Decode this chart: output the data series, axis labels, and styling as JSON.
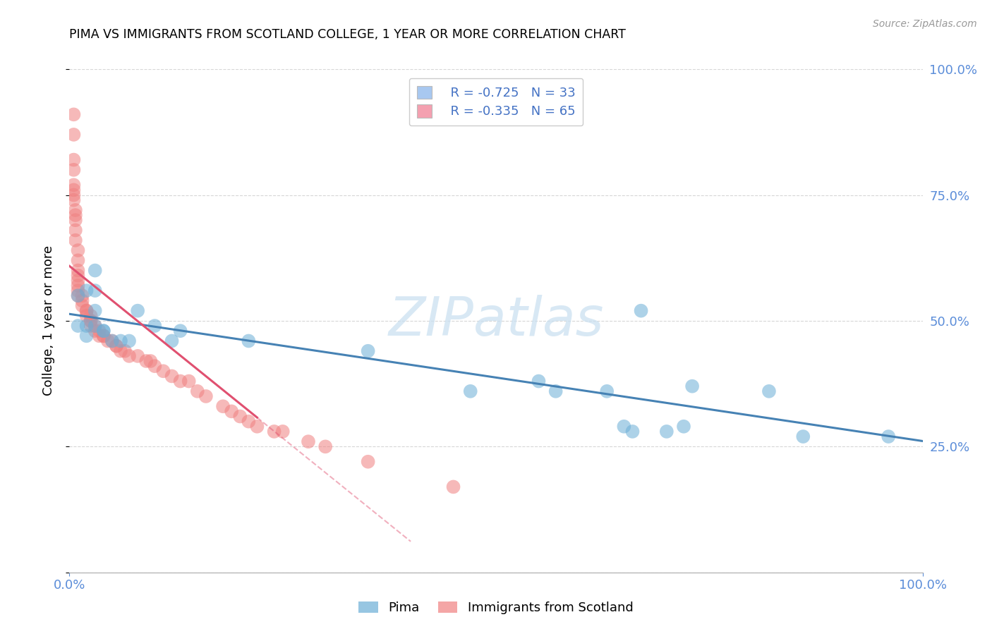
{
  "title": "PIMA VS IMMIGRANTS FROM SCOTLAND COLLEGE, 1 YEAR OR MORE CORRELATION CHART",
  "source": "Source: ZipAtlas.com",
  "ylabel": "College, 1 year or more",
  "xlim": [
    0.0,
    1.0
  ],
  "ylim": [
    0.0,
    1.0
  ],
  "legend_entry1": {
    "R": "-0.725",
    "N": "33",
    "color": "#a8c8f0"
  },
  "legend_entry2": {
    "R": "-0.335",
    "N": "65",
    "color": "#f4a0b0"
  },
  "pima_color": "#6baed6",
  "scotland_color": "#f08080",
  "pima_line_color": "#4682b4",
  "scotland_line_color": "#e05070",
  "background_color": "#ffffff",
  "grid_color": "#cccccc",
  "pima_points_x": [
    0.01,
    0.01,
    0.02,
    0.02,
    0.02,
    0.03,
    0.03,
    0.03,
    0.03,
    0.04,
    0.04,
    0.05,
    0.06,
    0.07,
    0.08,
    0.1,
    0.12,
    0.13,
    0.21,
    0.35,
    0.47,
    0.55,
    0.57,
    0.63,
    0.65,
    0.66,
    0.67,
    0.7,
    0.72,
    0.73,
    0.82,
    0.86,
    0.96
  ],
  "pima_points_y": [
    0.55,
    0.49,
    0.49,
    0.56,
    0.47,
    0.6,
    0.49,
    0.56,
    0.52,
    0.48,
    0.48,
    0.46,
    0.46,
    0.46,
    0.52,
    0.49,
    0.46,
    0.48,
    0.46,
    0.44,
    0.36,
    0.38,
    0.36,
    0.36,
    0.29,
    0.28,
    0.52,
    0.28,
    0.29,
    0.37,
    0.36,
    0.27,
    0.27
  ],
  "scotland_points_x": [
    0.005,
    0.005,
    0.005,
    0.005,
    0.005,
    0.005,
    0.005,
    0.005,
    0.007,
    0.007,
    0.007,
    0.007,
    0.007,
    0.01,
    0.01,
    0.01,
    0.01,
    0.01,
    0.01,
    0.01,
    0.01,
    0.015,
    0.015,
    0.015,
    0.02,
    0.02,
    0.02,
    0.025,
    0.025,
    0.025,
    0.025,
    0.03,
    0.03,
    0.035,
    0.035,
    0.04,
    0.04,
    0.045,
    0.05,
    0.055,
    0.055,
    0.06,
    0.065,
    0.07,
    0.08,
    0.09,
    0.095,
    0.1,
    0.11,
    0.12,
    0.13,
    0.14,
    0.15,
    0.16,
    0.18,
    0.19,
    0.2,
    0.21,
    0.22,
    0.24,
    0.25,
    0.28,
    0.3,
    0.35,
    0.45
  ],
  "scotland_points_y": [
    0.91,
    0.87,
    0.82,
    0.8,
    0.77,
    0.76,
    0.75,
    0.74,
    0.72,
    0.71,
    0.7,
    0.68,
    0.66,
    0.64,
    0.62,
    0.6,
    0.59,
    0.58,
    0.57,
    0.56,
    0.55,
    0.55,
    0.54,
    0.53,
    0.52,
    0.52,
    0.51,
    0.51,
    0.5,
    0.5,
    0.49,
    0.49,
    0.48,
    0.48,
    0.47,
    0.47,
    0.47,
    0.46,
    0.46,
    0.45,
    0.45,
    0.44,
    0.44,
    0.43,
    0.43,
    0.42,
    0.42,
    0.41,
    0.4,
    0.39,
    0.38,
    0.38,
    0.36,
    0.35,
    0.33,
    0.32,
    0.31,
    0.3,
    0.29,
    0.28,
    0.28,
    0.26,
    0.25,
    0.22,
    0.17
  ],
  "pima_R": -0.725,
  "scotland_R": -0.335,
  "watermark_text": "ZIPatlas",
  "watermark_color": "#c8dff0",
  "bottom_legend_labels": [
    "Pima",
    "Immigrants from Scotland"
  ]
}
